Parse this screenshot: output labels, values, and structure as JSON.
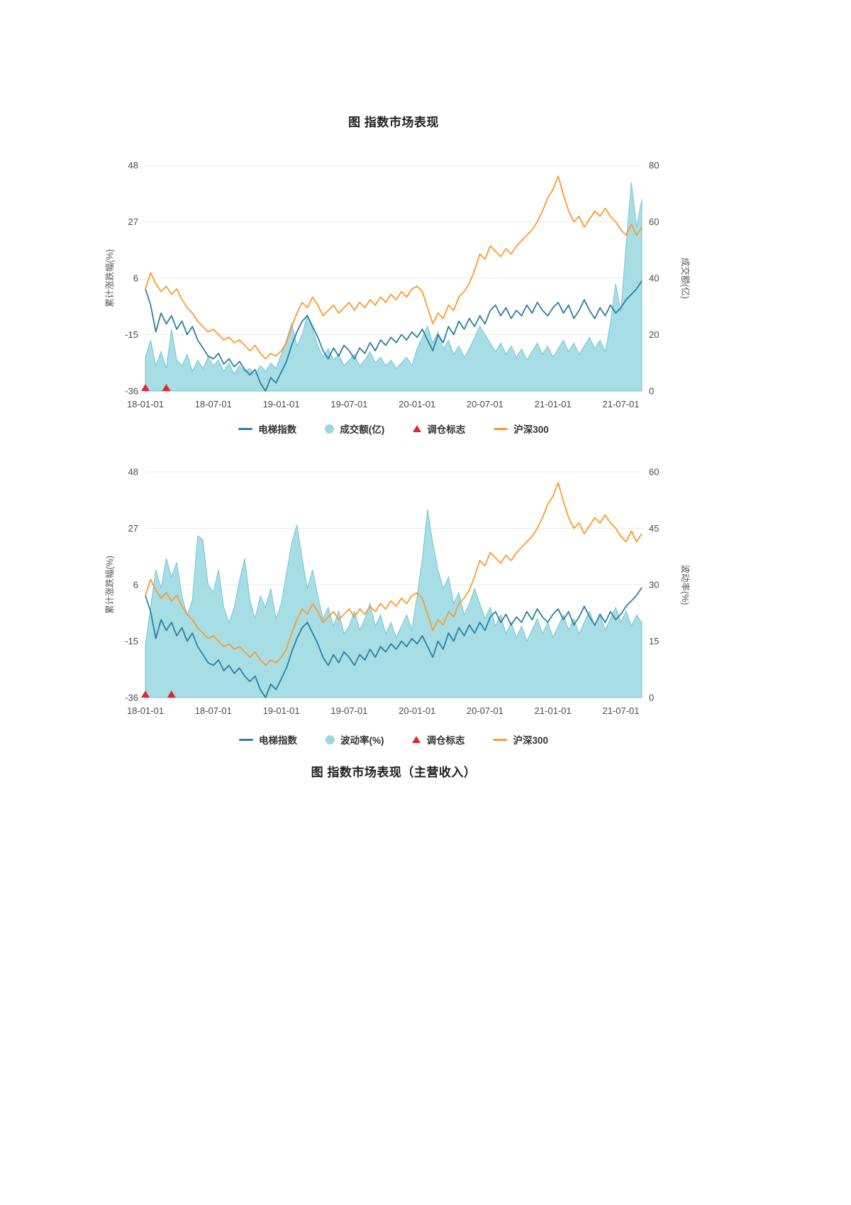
{
  "page": {
    "title_top": "图 指数市场表现",
    "title_bottom": "图 指数市场表现（主营收入）"
  },
  "colors": {
    "line_index": "#2e7f9f",
    "line_hs300": "#f89c2f",
    "area_fill": "#9bd8e0",
    "area_edge": "#76c6d2",
    "marker_red": "#e2262c",
    "grid": "#e8e8e8",
    "axis_text": "#4a4a4a"
  },
  "chart_data": [
    {
      "type": "line",
      "title": "图 指数市场表现",
      "n": 96,
      "left_axis": {
        "label": "累计涨跌幅(%)",
        "min": -36,
        "max": 48,
        "ticks": [
          48,
          27,
          6,
          -15,
          -36
        ]
      },
      "right_axis": {
        "label": "成交额(亿)",
        "min": 0,
        "max": 80,
        "ticks": [
          80,
          60,
          40,
          20,
          0
        ]
      },
      "x_ticks": {
        "labels": [
          "18-01-01",
          "18-07-01",
          "19-01-01",
          "19-07-01",
          "20-01-01",
          "20-07-01",
          "21-01-01",
          "21-07-01"
        ],
        "indices": [
          0,
          13,
          26,
          39,
          52,
          65,
          78,
          91
        ]
      },
      "series": [
        {
          "name": "电梯指数",
          "kind": "line",
          "axis": "left",
          "color_key": "line_index",
          "values": [
            2,
            -4,
            -14,
            -7,
            -11,
            -8,
            -13,
            -10,
            -15,
            -12,
            -17,
            -20,
            -23,
            -24,
            -22,
            -26,
            -24,
            -27,
            -25,
            -28,
            -30,
            -28,
            -33,
            -36,
            -31,
            -33,
            -29,
            -25,
            -19,
            -14,
            -10,
            -8,
            -12,
            -16,
            -21,
            -24,
            -20,
            -23,
            -19,
            -21,
            -24,
            -20,
            -22,
            -18,
            -21,
            -17,
            -19,
            -16,
            -18,
            -15,
            -17,
            -14,
            -16,
            -13,
            -17,
            -21,
            -15,
            -18,
            -12,
            -15,
            -10,
            -13,
            -9,
            -12,
            -8,
            -11,
            -6,
            -4,
            -8,
            -5,
            -9,
            -6,
            -8,
            -4,
            -7,
            -3,
            -6,
            -8,
            -5,
            -3,
            -7,
            -4,
            -9,
            -6,
            -2,
            -6,
            -9,
            -5,
            -8,
            -4,
            -7,
            -5,
            -2,
            0,
            2,
            5
          ]
        },
        {
          "name": "成交额(亿)",
          "kind": "area",
          "axis": "right",
          "color_key": "area_fill",
          "values": [
            12,
            18,
            9,
            14,
            8,
            22,
            11,
            9,
            13,
            7,
            11,
            8,
            12,
            9,
            11,
            7,
            10,
            6,
            9,
            7,
            8,
            6,
            9,
            7,
            10,
            8,
            13,
            18,
            24,
            16,
            20,
            27,
            22,
            16,
            12,
            15,
            11,
            13,
            9,
            11,
            13,
            9,
            11,
            14,
            10,
            12,
            9,
            11,
            8,
            10,
            12,
            9,
            15,
            19,
            23,
            17,
            21,
            15,
            18,
            13,
            16,
            12,
            15,
            19,
            23,
            20,
            17,
            14,
            17,
            13,
            16,
            12,
            15,
            11,
            14,
            17,
            13,
            16,
            12,
            15,
            18,
            14,
            17,
            13,
            16,
            19,
            15,
            18,
            14,
            24,
            38,
            28,
            52,
            74,
            58,
            68
          ]
        },
        {
          "name": "调仓标志",
          "kind": "marker",
          "axis": "left",
          "color_key": "marker_red",
          "points": [
            {
              "i": 0,
              "v": -36
            },
            {
              "i": 4,
              "v": -36
            }
          ]
        },
        {
          "name": "沪深300",
          "kind": "line",
          "axis": "left",
          "color_key": "line_hs300",
          "values": [
            2,
            8,
            4,
            1,
            3,
            0,
            2,
            -2,
            -5,
            -7,
            -10,
            -12,
            -14,
            -13,
            -15,
            -17,
            -16,
            -18,
            -17,
            -19,
            -21,
            -19,
            -22,
            -24,
            -22,
            -23,
            -21,
            -18,
            -12,
            -7,
            -3,
            -5,
            -1,
            -4,
            -8,
            -6,
            -4,
            -7,
            -5,
            -3,
            -6,
            -3,
            -5,
            -2,
            -4,
            -1,
            -3,
            0,
            -2,
            1,
            -1,
            2,
            3,
            1,
            -5,
            -11,
            -7,
            -9,
            -4,
            -6,
            -1,
            1,
            4,
            9,
            15,
            13,
            18,
            16,
            14,
            17,
            15,
            18,
            20,
            22,
            24,
            27,
            31,
            36,
            39,
            44,
            37,
            31,
            27,
            29,
            25,
            28,
            31,
            29,
            32,
            29,
            27,
            24,
            22,
            26,
            22,
            25
          ]
        }
      ]
    },
    {
      "type": "line",
      "title": "图 指数市场表现（主营收入）",
      "n": 96,
      "left_axis": {
        "label": "累计涨跌幅(%)",
        "min": -36,
        "max": 48,
        "ticks": [
          48,
          27,
          6,
          -15,
          -36
        ]
      },
      "right_axis": {
        "label": "波动率(%)",
        "min": 0,
        "max": 60,
        "ticks": [
          60,
          45,
          30,
          15,
          0
        ]
      },
      "x_ticks": {
        "labels": [
          "18-01-01",
          "18-07-01",
          "19-01-01",
          "19-07-01",
          "20-01-01",
          "20-07-01",
          "21-01-01",
          "21-07-01"
        ],
        "indices": [
          0,
          13,
          26,
          39,
          52,
          65,
          78,
          91
        ]
      },
      "series": [
        {
          "name": "电梯指数",
          "kind": "line",
          "axis": "left",
          "color_key": "line_index",
          "values": [
            2,
            -4,
            -14,
            -7,
            -11,
            -8,
            -13,
            -10,
            -15,
            -12,
            -17,
            -20,
            -23,
            -24,
            -22,
            -26,
            -24,
            -27,
            -25,
            -28,
            -30,
            -28,
            -33,
            -36,
            -31,
            -33,
            -29,
            -25,
            -19,
            -14,
            -10,
            -8,
            -12,
            -16,
            -21,
            -24,
            -20,
            -23,
            -19,
            -21,
            -24,
            -20,
            -22,
            -18,
            -21,
            -17,
            -19,
            -16,
            -18,
            -15,
            -17,
            -14,
            -16,
            -13,
            -17,
            -21,
            -15,
            -18,
            -12,
            -15,
            -10,
            -13,
            -9,
            -12,
            -8,
            -11,
            -6,
            -4,
            -8,
            -5,
            -9,
            -6,
            -8,
            -4,
            -7,
            -3,
            -6,
            -8,
            -5,
            -3,
            -7,
            -4,
            -9,
            -6,
            -2,
            -6,
            -9,
            -5,
            -8,
            -4,
            -7,
            -5,
            -2,
            0,
            2,
            5
          ]
        },
        {
          "name": "波动率(%)",
          "kind": "area",
          "axis": "right",
          "color_key": "area_fill",
          "values": [
            14,
            24,
            34,
            29,
            37,
            32,
            36,
            27,
            22,
            26,
            43,
            42,
            30,
            28,
            34,
            24,
            20,
            24,
            31,
            37,
            26,
            21,
            27,
            24,
            29,
            21,
            25,
            33,
            41,
            46,
            37,
            29,
            34,
            27,
            21,
            24,
            19,
            23,
            17,
            19,
            23,
            18,
            21,
            25,
            19,
            22,
            17,
            20,
            16,
            19,
            22,
            18,
            27,
            37,
            50,
            41,
            34,
            29,
            32,
            25,
            28,
            22,
            25,
            29,
            25,
            21,
            24,
            19,
            22,
            17,
            20,
            16,
            19,
            15,
            18,
            21,
            17,
            20,
            16,
            19,
            22,
            18,
            21,
            17,
            20,
            23,
            19,
            22,
            18,
            21,
            24,
            20,
            23,
            19,
            22,
            20
          ]
        },
        {
          "name": "调仓标志",
          "kind": "marker",
          "axis": "left",
          "color_key": "marker_red",
          "points": [
            {
              "i": 0,
              "v": -36
            },
            {
              "i": 5,
              "v": -36
            }
          ]
        },
        {
          "name": "沪深300",
          "kind": "line",
          "axis": "left",
          "color_key": "line_hs300",
          "values": [
            2,
            8,
            4,
            1,
            3,
            0,
            2,
            -2,
            -5,
            -7,
            -10,
            -12,
            -14,
            -13,
            -15,
            -17,
            -16,
            -18,
            -17,
            -19,
            -21,
            -19,
            -22,
            -24,
            -22,
            -23,
            -21,
            -18,
            -12,
            -7,
            -3,
            -5,
            -1,
            -4,
            -8,
            -6,
            -4,
            -7,
            -5,
            -3,
            -6,
            -3,
            -5,
            -2,
            -4,
            -1,
            -3,
            0,
            -2,
            1,
            -1,
            2,
            3,
            1,
            -5,
            -11,
            -7,
            -9,
            -4,
            -6,
            -1,
            1,
            4,
            9,
            15,
            13,
            18,
            16,
            14,
            17,
            15,
            18,
            20,
            22,
            24,
            27,
            31,
            36,
            39,
            44,
            37,
            31,
            27,
            29,
            25,
            28,
            31,
            29,
            32,
            29,
            27,
            24,
            22,
            26,
            22,
            25
          ]
        }
      ]
    }
  ]
}
